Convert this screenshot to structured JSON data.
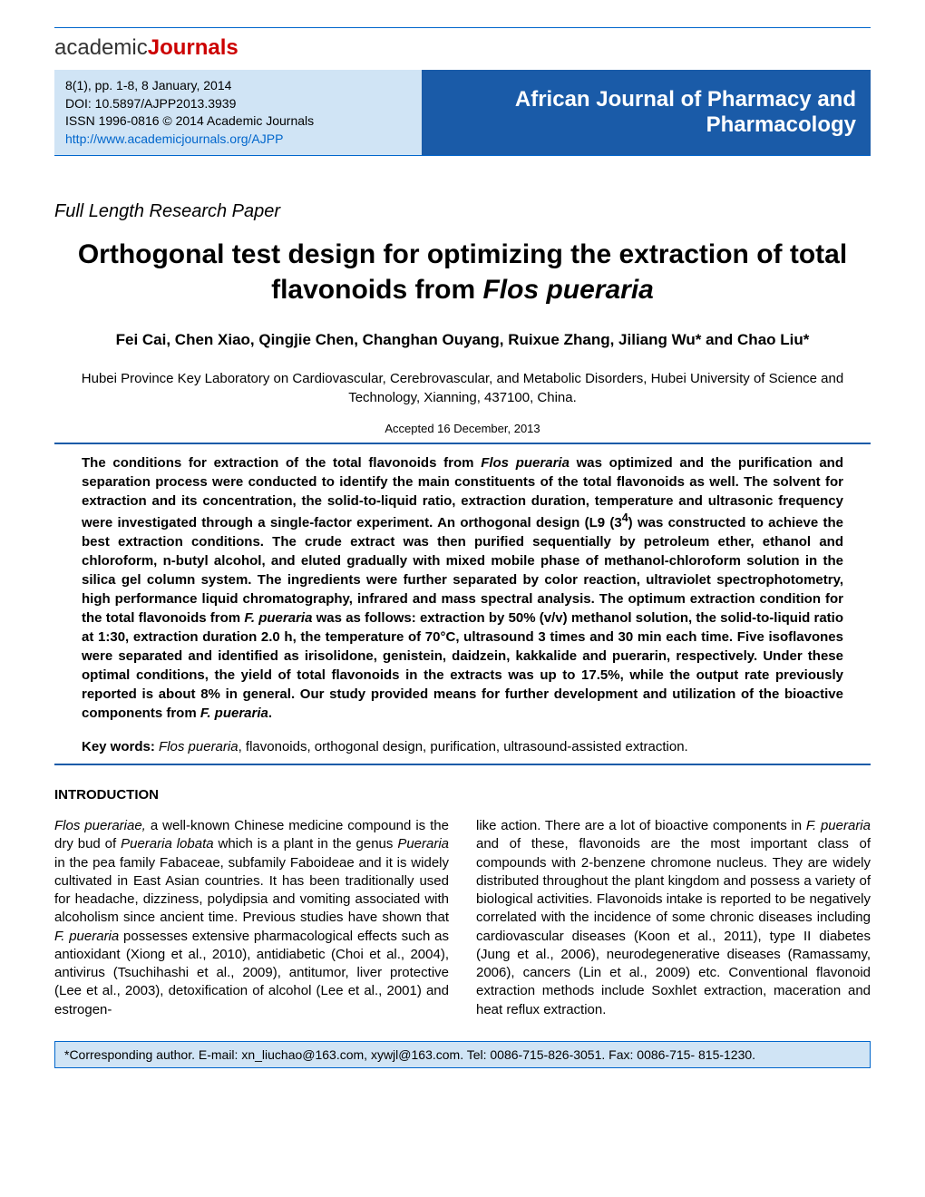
{
  "logo": {
    "part1": "academic",
    "part2": "Journals"
  },
  "citation": {
    "line1": "8(1), pp. 1-8, 8 January, 2014",
    "line2": "DOI: 10.5897/AJPP2013.3939",
    "line3": "ISSN 1996-0816 © 2014 Academic Journals",
    "line4": "http://www.academicjournals.org/AJPP"
  },
  "journal_name": "African Journal of Pharmacy and Pharmacology",
  "paper_type": "Full Length Research Paper",
  "title_pre": "Orthogonal test design for optimizing the extraction of total flavonoids from ",
  "title_species": "Flos pueraria",
  "authors": "Fei Cai, Chen Xiao, Qingjie Chen, Changhan Ouyang, Ruixue Zhang, Jiliang Wu* and Chao Liu*",
  "affiliation": "Hubei Province Key Laboratory on Cardiovascular, Cerebrovascular, and Metabolic Disorders, Hubei University of Science and Technology, Xianning, 437100, China.",
  "accepted": "Accepted 16 December, 2013",
  "abstract": {
    "p1a": "The conditions for extraction of the total flavonoids from ",
    "p1b": "Flos pueraria",
    "p1c": " was optimized and the purification and separation process were conducted to identify the main constituents of the total flavonoids as well. The solvent for extraction and its concentration, the solid-to-liquid ratio, extraction duration, temperature and ultrasonic frequency were investigated through a single-factor experiment. An orthogonal design (L9 (3",
    "p1d": "4",
    "p1e": ") was constructed to achieve the best extraction conditions. The crude extract was then purified sequentially by petroleum ether, ethanol and chloroform, n-butyl alcohol, and eluted gradually with mixed mobile phase of methanol-chloroform solution in the silica gel column system. The ingredients were further separated by color reaction, ultraviolet spectrophotometry, high performance liquid chromatography, infrared and mass spectral analysis. The optimum extraction condition for the total flavonoids from ",
    "p1f": "F. pueraria",
    "p1g": " was as follows: extraction  by 50% (v/v) methanol solution, the solid-to-liquid ratio at 1:30, extraction duration 2.0 h, the temperature of 70°C, ultrasound 3 times and 30 min each time. Five isoflavones were separated and identified as irisolidone, genistein, daidzein, kakkalide and puerarin, respectively. Under these optimal conditions, the yield of total flavonoids in the extracts was up to 17.5%, while the output rate previously reported is about 8% in general. Our study provided means for further development and utilization of the bioactive components from ",
    "p1h": "F. pueraria",
    "p1i": "."
  },
  "keywords": {
    "label": "Key words: ",
    "species": "Flos pueraria",
    "rest": ", flavonoids, orthogonal design, purification, ultrasound-assisted extraction."
  },
  "intro_heading": "INTRODUCTION",
  "intro": {
    "col1_a": "Flos puerariae,",
    "col1_b": " a well-known Chinese medicine compound is the dry bud of ",
    "col1_c": "Pueraria lobata",
    "col1_d": " which is a plant in the genus ",
    "col1_e": "Pueraria",
    "col1_f": " in the pea family Fabaceae, subfamily Faboideae and it is widely cultivated in East Asian countries. It has been traditionally used for headache, dizziness, polydipsia and vomiting associated with alcoholism since ancient time. Previous studies have shown that ",
    "col1_g": "F. pueraria",
    "col1_h": " possesses extensive pharmacological effects such as antioxidant (Xiong et al., 2010), antidiabetic (Choi et al., 2004), antivirus (Tsuchihashi et al., 2009), antitumor, liver protective (Lee et al., 2003), detoxification of alcohol (Lee et al., 2001) and estrogen-",
    "col2_a": "like action. There are a lot of bioactive components in ",
    "col2_b": "F. pueraria",
    "col2_c": " and of these, flavonoids are the most important class of compounds with 2-benzene chromone nucleus. They are widely distributed throughout the plant kingdom and possess a variety of biological activities. Flavonoids intake is reported to be negatively correlated with the incidence of some chronic diseases including cardiovascular diseases (Koon et al., 2011), type II diabetes (Jung et al., 2006), neurodegenerative diseases (Ramassamy, 2006), cancers (Lin et al., 2009) etc. Conventional flavonoid extraction methods include Soxhlet extraction, maceration and heat reflux extraction."
  },
  "footer": "*Corresponding author. E-mail: xn_liuchao@163.com, xywjl@163.com. Tel: 0086-715-826-3051. Fax: 0086-715- 815-1230.",
  "colors": {
    "rule": "#0066cc",
    "header_left_bg": "#d0e4f5",
    "header_right_bg": "#1a5ba8",
    "link": "#0066cc"
  }
}
